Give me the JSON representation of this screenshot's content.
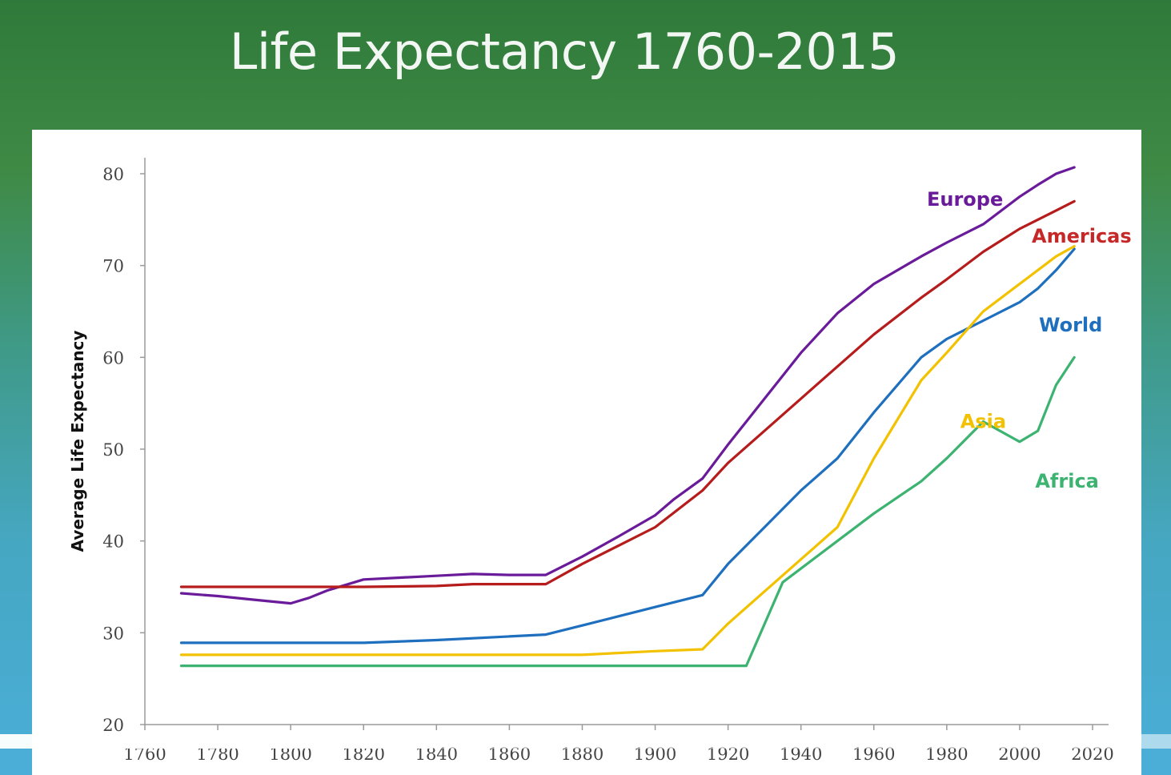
{
  "slide": {
    "title": "Life Expectancy 1760-2015"
  },
  "video": {
    "progress_fraction": 0.37
  },
  "chart_data": {
    "type": "line",
    "title": "Life Expectancy 1760-2015",
    "xlabel": "",
    "ylabel": "Average Life Expectancy",
    "xlim": [
      1760,
      2020
    ],
    "ylim": [
      20,
      80
    ],
    "xticks": [
      1760,
      1780,
      1800,
      1820,
      1840,
      1860,
      1880,
      1900,
      1920,
      1940,
      1960,
      1980,
      2000,
      2020
    ],
    "yticks": [
      20,
      30,
      40,
      50,
      60,
      70,
      80
    ],
    "grid": false,
    "series": [
      {
        "name": "Europe",
        "color": "#6a1b9a",
        "points": [
          [
            1770,
            34.3
          ],
          [
            1780,
            34.0
          ],
          [
            1790,
            33.6
          ],
          [
            1800,
            33.2
          ],
          [
            1805,
            33.8
          ],
          [
            1810,
            34.6
          ],
          [
            1815,
            35.2
          ],
          [
            1820,
            35.8
          ],
          [
            1830,
            36.0
          ],
          [
            1840,
            36.2
          ],
          [
            1850,
            36.4
          ],
          [
            1860,
            36.3
          ],
          [
            1870,
            36.3
          ],
          [
            1880,
            38.3
          ],
          [
            1890,
            40.5
          ],
          [
            1900,
            42.8
          ],
          [
            1905,
            44.5
          ],
          [
            1913,
            46.8
          ],
          [
            1920,
            50.5
          ],
          [
            1925,
            53.0
          ],
          [
            1930,
            55.5
          ],
          [
            1940,
            60.5
          ],
          [
            1950,
            64.8
          ],
          [
            1960,
            68.0
          ],
          [
            1973,
            71.0
          ],
          [
            1980,
            72.5
          ],
          [
            1990,
            74.5
          ],
          [
            2000,
            77.5
          ],
          [
            2005,
            78.8
          ],
          [
            2010,
            80.0
          ],
          [
            2015,
            80.7
          ]
        ]
      },
      {
        "name": "Americas",
        "color": "#b71c1c",
        "points": [
          [
            1770,
            35.0
          ],
          [
            1800,
            35.0
          ],
          [
            1820,
            35.0
          ],
          [
            1840,
            35.1
          ],
          [
            1850,
            35.3
          ],
          [
            1860,
            35.3
          ],
          [
            1870,
            35.3
          ],
          [
            1880,
            37.5
          ],
          [
            1890,
            39.5
          ],
          [
            1900,
            41.5
          ],
          [
            1913,
            45.5
          ],
          [
            1920,
            48.5
          ],
          [
            1930,
            52.0
          ],
          [
            1940,
            55.5
          ],
          [
            1950,
            59.0
          ],
          [
            1960,
            62.5
          ],
          [
            1973,
            66.5
          ],
          [
            1980,
            68.5
          ],
          [
            1990,
            71.5
          ],
          [
            2000,
            74.0
          ],
          [
            2010,
            76.0
          ],
          [
            2015,
            77.0
          ]
        ]
      },
      {
        "name": "World",
        "color": "#1f6fbf",
        "points": [
          [
            1770,
            28.9
          ],
          [
            1800,
            28.9
          ],
          [
            1820,
            28.9
          ],
          [
            1840,
            29.2
          ],
          [
            1860,
            29.6
          ],
          [
            1870,
            29.8
          ],
          [
            1880,
            30.8
          ],
          [
            1890,
            31.8
          ],
          [
            1900,
            32.8
          ],
          [
            1913,
            34.1
          ],
          [
            1920,
            37.5
          ],
          [
            1930,
            41.5
          ],
          [
            1940,
            45.5
          ],
          [
            1950,
            49.0
          ],
          [
            1960,
            54.0
          ],
          [
            1973,
            60.0
          ],
          [
            1980,
            62.0
          ],
          [
            1990,
            64.0
          ],
          [
            2000,
            66.0
          ],
          [
            2005,
            67.5
          ],
          [
            2010,
            69.5
          ],
          [
            2015,
            71.8
          ]
        ]
      },
      {
        "name": "Asia",
        "color": "#f2c200",
        "points": [
          [
            1770,
            27.6
          ],
          [
            1800,
            27.6
          ],
          [
            1840,
            27.6
          ],
          [
            1860,
            27.6
          ],
          [
            1880,
            27.6
          ],
          [
            1900,
            28.0
          ],
          [
            1913,
            28.2
          ],
          [
            1920,
            31.0
          ],
          [
            1930,
            34.5
          ],
          [
            1940,
            38.0
          ],
          [
            1950,
            41.5
          ],
          [
            1960,
            49.0
          ],
          [
            1973,
            57.5
          ],
          [
            1980,
            60.5
          ],
          [
            1990,
            65.0
          ],
          [
            2000,
            68.0
          ],
          [
            2010,
            71.0
          ],
          [
            2015,
            72.1
          ]
        ]
      },
      {
        "name": "Africa",
        "color": "#3cb371",
        "points": [
          [
            1770,
            26.4
          ],
          [
            1800,
            26.4
          ],
          [
            1840,
            26.4
          ],
          [
            1880,
            26.4
          ],
          [
            1900,
            26.4
          ],
          [
            1920,
            26.4
          ],
          [
            1925,
            26.4
          ],
          [
            1935,
            35.5
          ],
          [
            1950,
            40.0
          ],
          [
            1960,
            43.0
          ],
          [
            1973,
            46.5
          ],
          [
            1980,
            49.0
          ],
          [
            1990,
            53.0
          ],
          [
            2000,
            50.8
          ],
          [
            2005,
            52.0
          ],
          [
            2010,
            57.0
          ],
          [
            2015,
            60.0
          ]
        ]
      }
    ],
    "annotations": [
      {
        "text": "Europe",
        "series": "Europe",
        "x": 1985,
        "y": 76.5,
        "color": "#6a1b9a"
      },
      {
        "text": "Americas",
        "series": "Americas",
        "x": 2017,
        "y": 72.5,
        "color": "#c62828"
      },
      {
        "text": "World",
        "series": "World",
        "x": 2014,
        "y": 62.8,
        "color": "#1f6fbf"
      },
      {
        "text": "Asia",
        "series": "Asia",
        "x": 1990,
        "y": 52.3,
        "color": "#f2c200"
      },
      {
        "text": "Africa",
        "series": "Africa",
        "x": 2013,
        "y": 45.8,
        "color": "#3cb371"
      }
    ]
  }
}
